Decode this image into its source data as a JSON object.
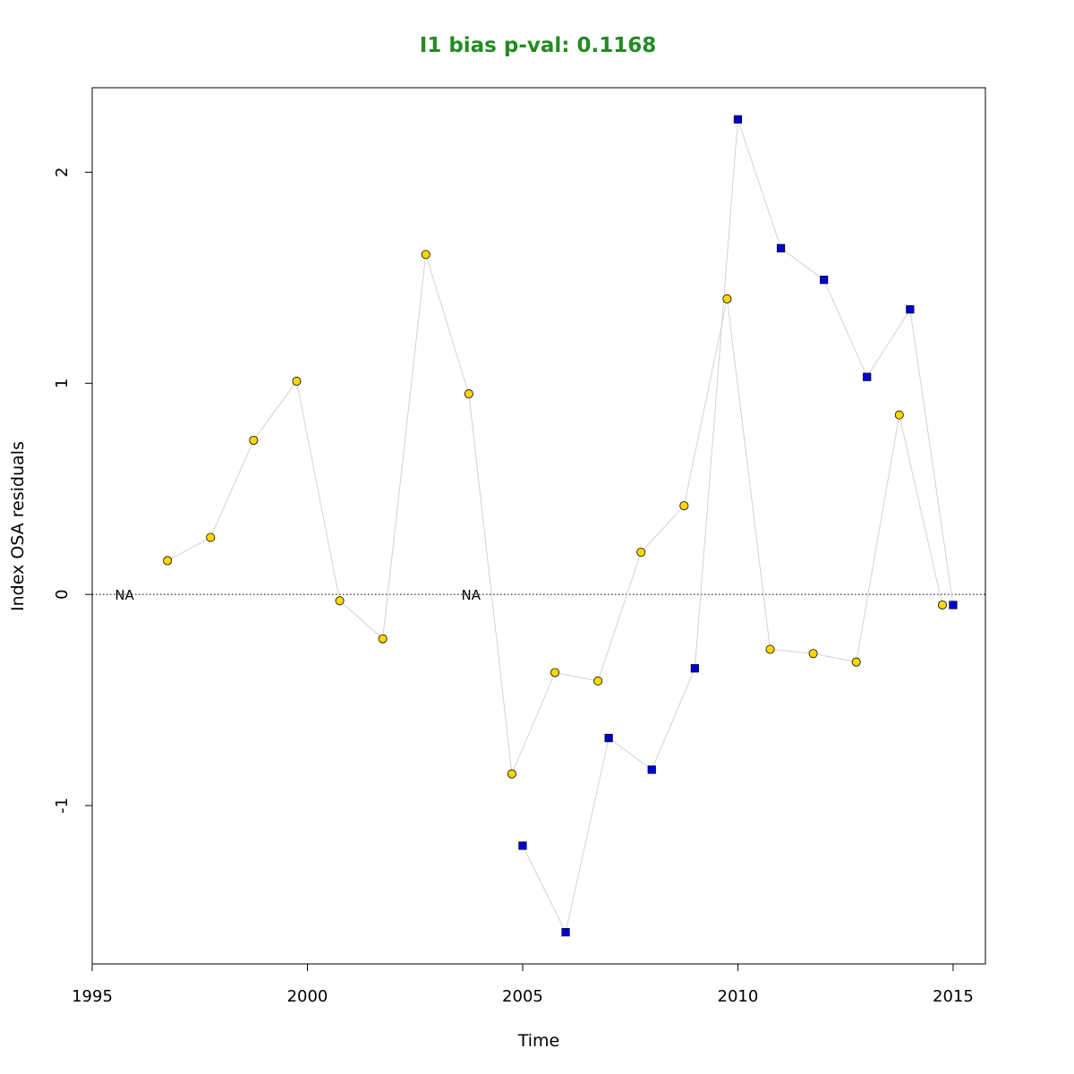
{
  "chart_data": {
    "type": "scatter",
    "title": "I1 bias p-val: 0.1168",
    "title_color": "#228B22",
    "xlabel": "Time",
    "ylabel": "Index OSA residuals",
    "xlim": [
      1995,
      2015.75
    ],
    "ylim": [
      -1.75,
      2.4
    ],
    "x_ticks": [
      1995,
      2000,
      2005,
      2010,
      2015
    ],
    "x_tick_labels": [
      "1995",
      "2000",
      "2005",
      "2010",
      "2015"
    ],
    "y_ticks": [
      -1,
      0,
      1,
      2
    ],
    "y_tick_labels": [
      "-1",
      "0",
      "1",
      "2"
    ],
    "reference_line_y": 0,
    "grid": false,
    "connector_color": "#d3d3d3",
    "series": [
      {
        "marker": "circle",
        "color": "#FFD700",
        "x": [
          1996.75,
          1997.75,
          1998.75,
          1999.75,
          2000.75,
          2001.75,
          2002.75,
          2003.75,
          2004.75,
          2005.75,
          2006.75,
          2007.75,
          2008.75,
          2009.75,
          2010.75,
          2011.75,
          2012.75,
          2013.75,
          2014.75
        ],
        "y": [
          0.16,
          0.27,
          0.73,
          1.01,
          -0.03,
          -0.21,
          1.61,
          0.95,
          -0.85,
          -0.37,
          -0.41,
          0.2,
          0.42,
          1.4,
          -0.26,
          -0.28,
          -0.32,
          0.85,
          -0.05
        ]
      },
      {
        "marker": "square",
        "color": "#0000CD",
        "x": [
          2005,
          2006,
          2007,
          2008,
          2009,
          2010,
          2011,
          2012,
          2013,
          2014,
          2015
        ],
        "y": [
          -1.19,
          -1.6,
          -0.68,
          -0.83,
          -0.35,
          2.25,
          1.64,
          1.49,
          1.03,
          1.35,
          -0.05
        ]
      }
    ],
    "annotations": [
      {
        "text": "NA",
        "x": 1995.75,
        "y": 0
      },
      {
        "text": "NA",
        "x": 2003.8,
        "y": 0
      }
    ]
  }
}
